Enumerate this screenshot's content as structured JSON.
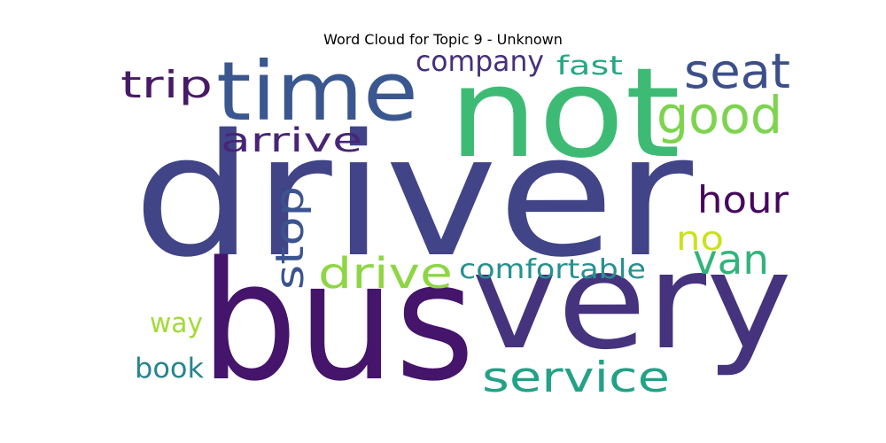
{
  "title": "Word Cloud for Topic 9 - Unknown",
  "words": [
    {
      "text": "driver",
      "color": "#414487"
    },
    {
      "text": "bus",
      "color": "#44156b"
    },
    {
      "text": "very",
      "color": "#46337e"
    },
    {
      "text": "not",
      "color": "#3dbb74"
    },
    {
      "text": "time",
      "color": "#3b5790"
    },
    {
      "text": "seat",
      "color": "#3c4f8a"
    },
    {
      "text": "good",
      "color": "#7ed34f"
    },
    {
      "text": "trip",
      "color": "#471a66"
    },
    {
      "text": "company",
      "color": "#462f7c"
    },
    {
      "text": "fast",
      "color": "#26a884"
    },
    {
      "text": "arrive",
      "color": "#482576"
    },
    {
      "text": "hour",
      "color": "#46085c"
    },
    {
      "text": "stop",
      "color": "#3b5490"
    },
    {
      "text": "no",
      "color": "#cbe11e"
    },
    {
      "text": "van",
      "color": "#31b47b"
    },
    {
      "text": "drive",
      "color": "#8ed645"
    },
    {
      "text": "comfortable",
      "color": "#26918f"
    },
    {
      "text": "way",
      "color": "#a3da37"
    },
    {
      "text": "book",
      "color": "#25858e"
    },
    {
      "text": "service",
      "color": "#24a187"
    }
  ]
}
